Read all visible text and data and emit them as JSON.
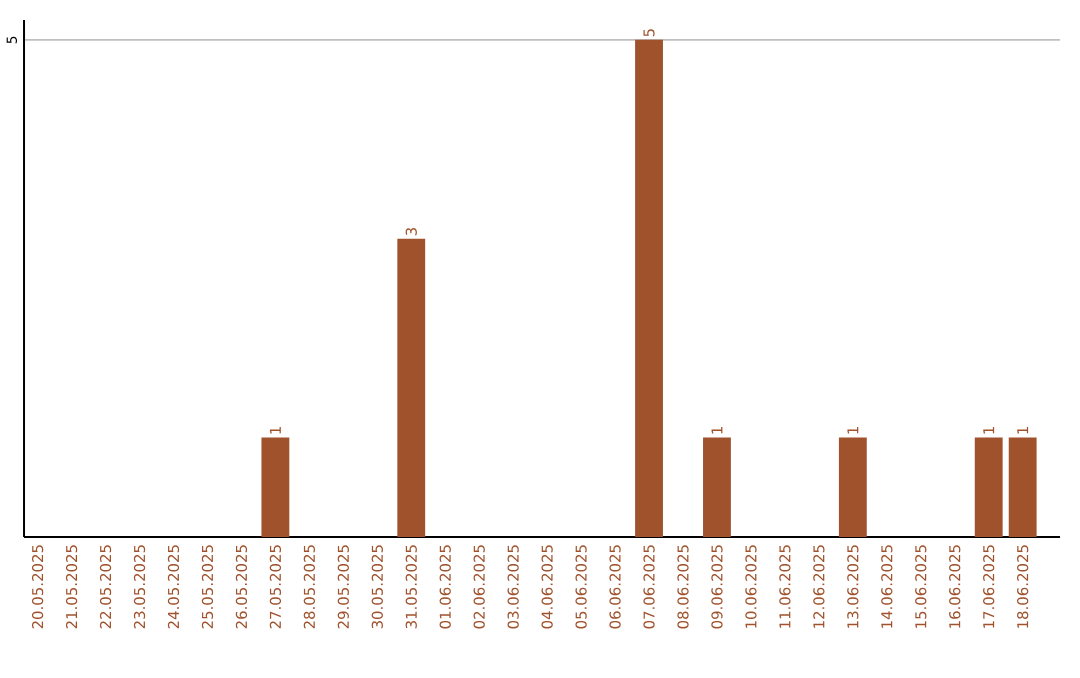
{
  "chart_data": {
    "type": "bar",
    "categories": [
      "20.05.2025",
      "21.05.2025",
      "22.05.2025",
      "23.05.2025",
      "24.05.2025",
      "25.05.2025",
      "26.05.2025",
      "27.05.2025",
      "28.05.2025",
      "29.05.2025",
      "30.05.2025",
      "31.05.2025",
      "01.06.2025",
      "02.06.2025",
      "03.06.2025",
      "04.06.2025",
      "05.06.2025",
      "06.06.2025",
      "07.06.2025",
      "08.06.2025",
      "09.06.2025",
      "10.06.2025",
      "11.06.2025",
      "12.06.2025",
      "13.06.2025",
      "14.06.2025",
      "15.06.2025",
      "16.06.2025",
      "17.06.2025",
      "18.06.2025"
    ],
    "values": [
      0,
      0,
      0,
      0,
      0,
      0,
      0,
      1,
      0,
      0,
      0,
      3,
      0,
      0,
      0,
      0,
      0,
      0,
      5,
      0,
      1,
      0,
      0,
      0,
      1,
      0,
      0,
      0,
      1,
      1
    ],
    "value_labels": [
      null,
      null,
      null,
      null,
      null,
      null,
      null,
      "1",
      null,
      null,
      null,
      "3",
      null,
      null,
      null,
      null,
      null,
      null,
      "5",
      null,
      "1",
      null,
      null,
      null,
      "1",
      null,
      null,
      null,
      "1",
      "1"
    ],
    "color": "#a0522d",
    "ylim": [
      0,
      5.2
    ],
    "yticks": [
      5
    ],
    "grid": "y"
  }
}
